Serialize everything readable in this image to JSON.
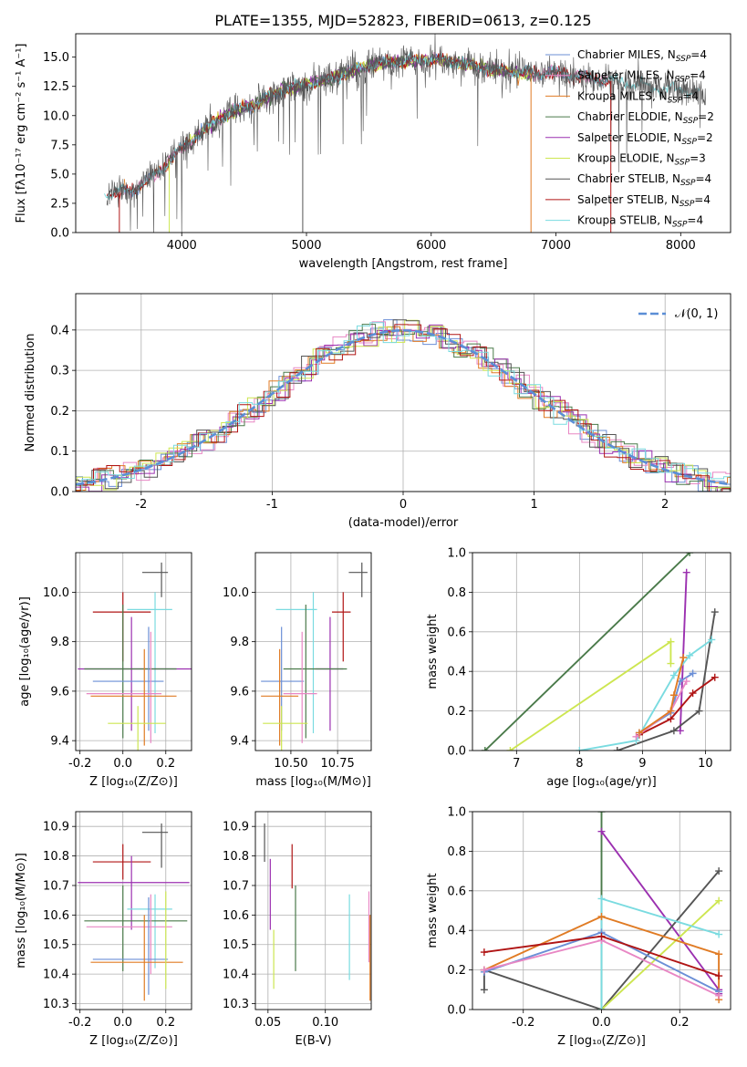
{
  "figure": {
    "title": "PLATE=1355, MJD=52823, FIBERID=0613, z=0.125"
  },
  "palette": {
    "Chabrier MILES": "#6b8fd6",
    "Salpeter MILES": "#e887c4",
    "Kroupa MILES": "#e07b24",
    "Chabrier ELODIE": "#4a7a4a",
    "Salpeter ELODIE": "#9b30b0",
    "Kroupa ELODIE": "#cde651",
    "Chabrier STELIB": "#555555",
    "Salpeter STELIB": "#b01515",
    "Kroupa STELIB": "#7adbe0"
  },
  "chart_data": [
    {
      "id": "spectrum",
      "type": "line",
      "xlabel": "wavelength [Angstrom, rest frame]",
      "ylabel": "Flux [fλ10⁻¹⁷ erg cm⁻² s⁻¹ A⁻¹]",
      "xlim": [
        3150,
        8400
      ],
      "ylim": [
        0,
        17
      ],
      "xticks": [
        4000,
        5000,
        6000,
        7000,
        8000
      ],
      "yticks": [
        0.0,
        2.5,
        5.0,
        7.5,
        10.0,
        12.5,
        15.0
      ],
      "legend": [
        "Chabrier MILES, N_SSP=4",
        "Salpeter MILES, N_SSP=4",
        "Kroupa MILES, N_SSP=4",
        "Chabrier ELODIE, N_SSP=2",
        "Salpeter ELODIE, N_SSP=2",
        "Kroupa ELODIE, N_SSP=3",
        "Chabrier STELIB, N_SSP=4",
        "Salpeter STELIB, N_SSP=4",
        "Kroupa STELIB, N_SSP=4"
      ],
      "legend_loc": "right",
      "continuum": {
        "x": [
          3400,
          3600,
          3800,
          4000,
          4200,
          4400,
          4600,
          4800,
          5000,
          5200,
          5400,
          5600,
          5800,
          6000,
          6200,
          6400,
          6600,
          6800,
          7000,
          7200,
          7400,
          7600,
          7800,
          8000,
          8200
        ],
        "y": [
          3.3,
          3.6,
          5.0,
          7.2,
          9.0,
          10.3,
          11.0,
          12.2,
          12.6,
          13.2,
          14.0,
          14.5,
          14.6,
          14.8,
          14.6,
          14.1,
          13.8,
          13.6,
          13.7,
          13.3,
          13.0,
          12.8,
          12.4,
          12.2,
          11.8
        ]
      }
    },
    {
      "id": "residuals",
      "type": "histogram",
      "xlabel": "(data-model)/error",
      "ylabel": "Normed distribution",
      "xlim": [
        -2.5,
        2.5
      ],
      "ylim": [
        0,
        0.49
      ],
      "xticks": [
        -2,
        -1,
        0,
        1,
        2
      ],
      "yticks": [
        0.0,
        0.1,
        0.2,
        0.3,
        0.4
      ],
      "legend": [
        "𝒩(0, 1)"
      ],
      "legend_loc": "top-right",
      "reference": "normal(0,1) pdf"
    },
    {
      "id": "age_vs_Z",
      "type": "scatter-errorbar",
      "xlabel": "Z [log₁₀(Z/Z⊙)]",
      "ylabel": "age  [log₁₀(age/yr)]",
      "xlim": [
        -0.22,
        0.32
      ],
      "ylim": [
        9.36,
        10.16
      ],
      "xticks": [
        -0.2,
        0.0,
        0.2
      ],
      "yticks": [
        9.4,
        9.6,
        9.8,
        10.0
      ],
      "points": [
        {
          "model": "Chabrier STELIB",
          "x": 0.18,
          "y": 10.08,
          "xerr": [
            0.09,
            0.03
          ],
          "yerr": [
            0.1,
            0.04
          ]
        },
        {
          "model": "Kroupa STELIB",
          "x": 0.15,
          "y": 9.93,
          "xerr": [
            0.13,
            0.08
          ],
          "yerr": [
            0.5,
            0.07
          ]
        },
        {
          "model": "Salpeter STELIB",
          "x": 0.0,
          "y": 9.92,
          "xerr": [
            0.14,
            0.13
          ],
          "yerr": [
            0.2,
            0.08
          ]
        },
        {
          "model": "Salpeter ELODIE",
          "x": 0.04,
          "y": 9.69,
          "xerr": [
            0.25,
            0.28
          ],
          "yerr": [
            0.25,
            0.21
          ]
        },
        {
          "model": "Chabrier ELODIE",
          "x": 0.0,
          "y": 9.69,
          "xerr": [
            0.18,
            0.25
          ],
          "yerr": [
            0.28,
            0.26
          ]
        },
        {
          "model": "Chabrier MILES",
          "x": 0.12,
          "y": 9.64,
          "xerr": [
            0.26,
            0.07
          ],
          "yerr": [
            0.2,
            0.22
          ]
        },
        {
          "model": "Salpeter MILES",
          "x": 0.13,
          "y": 9.59,
          "xerr": [
            0.3,
            0.05
          ],
          "yerr": [
            0.2,
            0.25
          ]
        },
        {
          "model": "Kroupa MILES",
          "x": 0.1,
          "y": 9.58,
          "xerr": [
            0.25,
            0.15
          ],
          "yerr": [
            0.2,
            0.19
          ]
        },
        {
          "model": "Kroupa ELODIE",
          "x": 0.07,
          "y": 9.47,
          "xerr": [
            0.14,
            0.13
          ],
          "yerr": [
            0.33,
            0.07
          ]
        }
      ]
    },
    {
      "id": "age_vs_mass",
      "type": "scatter-errorbar",
      "xlabel": "mass [log₁₀(M/M⊙)]",
      "ylabel": "",
      "xlim": [
        10.31,
        10.93
      ],
      "ylim": [
        9.36,
        10.16
      ],
      "xticks": [
        10.5,
        10.75
      ],
      "yticks": [
        9.4,
        9.6,
        9.8,
        10.0
      ],
      "points": [
        {
          "model": "Chabrier STELIB",
          "x": 10.88,
          "y": 10.08,
          "xerr": [
            0.07,
            0.03
          ],
          "yerr": [
            0.1,
            0.04
          ]
        },
        {
          "model": "Kroupa STELIB",
          "x": 10.62,
          "y": 9.93,
          "xerr": [
            0.2,
            0.02
          ],
          "yerr": [
            0.5,
            0.07
          ]
        },
        {
          "model": "Salpeter STELIB",
          "x": 10.78,
          "y": 9.92,
          "xerr": [
            0.06,
            0.04
          ],
          "yerr": [
            0.2,
            0.08
          ]
        },
        {
          "model": "Salpeter ELODIE",
          "x": 10.71,
          "y": 9.69,
          "xerr": [
            0.08,
            0.07
          ],
          "yerr": [
            0.25,
            0.21
          ]
        },
        {
          "model": "Chabrier ELODIE",
          "x": 10.58,
          "y": 9.69,
          "xerr": [
            0.12,
            0.22
          ],
          "yerr": [
            0.28,
            0.26
          ]
        },
        {
          "model": "Chabrier MILES",
          "x": 10.45,
          "y": 9.64,
          "xerr": [
            0.11,
            0.12
          ],
          "yerr": [
            0.2,
            0.22
          ]
        },
        {
          "model": "Salpeter MILES",
          "x": 10.56,
          "y": 9.59,
          "xerr": [
            0.1,
            0.08
          ],
          "yerr": [
            0.2,
            0.25
          ]
        },
        {
          "model": "Kroupa MILES",
          "x": 10.44,
          "y": 9.58,
          "xerr": [
            0.1,
            0.1
          ],
          "yerr": [
            0.2,
            0.19
          ]
        },
        {
          "model": "Kroupa ELODIE",
          "x": 10.45,
          "y": 9.47,
          "xerr": [
            0.1,
            0.14
          ],
          "yerr": [
            0.33,
            0.07
          ]
        }
      ]
    },
    {
      "id": "weight_vs_age",
      "type": "line",
      "xlabel": "age  [log₁₀(age/yr)]",
      "ylabel": "mass weight",
      "xlim": [
        6.3,
        10.4
      ],
      "ylim": [
        0,
        1.0
      ],
      "xticks": [
        7,
        8,
        9,
        10
      ],
      "yticks": [
        0.0,
        0.2,
        0.4,
        0.6,
        0.8,
        1.0
      ],
      "series": [
        {
          "model": "Chabrier ELODIE",
          "x": [
            6.5,
            9.75
          ],
          "y": [
            0.0,
            1.0
          ]
        },
        {
          "model": "Kroupa ELODIE",
          "x": [
            6.9,
            9.45,
            9.45
          ],
          "y": [
            0.0,
            0.55,
            0.44
          ]
        },
        {
          "model": "Salpeter ELODIE",
          "x": [
            9.6,
            9.7
          ],
          "y": [
            0.1,
            0.9
          ]
        },
        {
          "model": "Chabrier STELIB",
          "x": [
            8.6,
            9.5,
            9.9,
            10.15
          ],
          "y": [
            0.0,
            0.1,
            0.2,
            0.7
          ]
        },
        {
          "model": "Salpeter STELIB",
          "x": [
            8.95,
            9.45,
            9.8,
            10.15
          ],
          "y": [
            0.08,
            0.16,
            0.29,
            0.37
          ]
        },
        {
          "model": "Kroupa STELIB",
          "x": [
            8.0,
            8.9,
            9.5,
            9.75,
            10.1
          ],
          "y": [
            0.0,
            0.05,
            0.38,
            0.48,
            0.56
          ]
        },
        {
          "model": "Chabrier MILES",
          "x": [
            8.95,
            9.45,
            9.6,
            9.8
          ],
          "y": [
            0.09,
            0.19,
            0.35,
            0.39
          ]
        },
        {
          "model": "Salpeter MILES",
          "x": [
            8.9,
            9.45,
            9.7
          ],
          "y": [
            0.07,
            0.2,
            0.35
          ]
        },
        {
          "model": "Kroupa MILES",
          "x": [
            8.95,
            9.45,
            9.5,
            9.65
          ],
          "y": [
            0.09,
            0.2,
            0.28,
            0.47
          ]
        }
      ]
    },
    {
      "id": "mass_vs_Z",
      "type": "scatter-errorbar",
      "xlabel": "Z [log₁₀(Z/Z⊙)]",
      "ylabel": "mass [log₁₀(M/M⊙)]",
      "xlim": [
        -0.22,
        0.32
      ],
      "ylim": [
        10.28,
        10.95
      ],
      "xticks": [
        -0.2,
        0.0,
        0.2
      ],
      "yticks": [
        10.3,
        10.4,
        10.5,
        10.6,
        10.7,
        10.8,
        10.9
      ],
      "points": [
        {
          "model": "Chabrier STELIB",
          "x": 0.18,
          "y": 10.88,
          "xerr": [
            0.09,
            0.03
          ],
          "yerr": [
            0.12,
            0.03
          ]
        },
        {
          "model": "Salpeter STELIB",
          "x": 0.0,
          "y": 10.78,
          "xerr": [
            0.14,
            0.13
          ],
          "yerr": [
            0.06,
            0.06
          ]
        },
        {
          "model": "Salpeter ELODIE",
          "x": 0.04,
          "y": 10.71,
          "xerr": [
            0.25,
            0.27
          ],
          "yerr": [
            0.16,
            0.09
          ]
        },
        {
          "model": "Kroupa STELIB",
          "x": 0.15,
          "y": 10.62,
          "xerr": [
            0.13,
            0.08
          ],
          "yerr": [
            0.2,
            0.05
          ]
        },
        {
          "model": "Chabrier ELODIE",
          "x": 0.0,
          "y": 10.58,
          "xerr": [
            0.18,
            0.3
          ],
          "yerr": [
            0.17,
            0.12
          ]
        },
        {
          "model": "Salpeter MILES",
          "x": 0.13,
          "y": 10.56,
          "xerr": [
            0.3,
            0.1
          ],
          "yerr": [
            0.16,
            0.11
          ]
        },
        {
          "model": "Chabrier MILES",
          "x": 0.12,
          "y": 10.45,
          "xerr": [
            0.26,
            0.09
          ],
          "yerr": [
            0.12,
            0.21
          ]
        },
        {
          "model": "Kroupa MILES",
          "x": 0.1,
          "y": 10.44,
          "xerr": [
            0.25,
            0.18
          ],
          "yerr": [
            0.13,
            0.16
          ]
        },
        {
          "model": "Kroupa ELODIE",
          "x": 0.2,
          "y": 10.45,
          "xerr": [
            0.0,
            0.0
          ],
          "yerr": [
            0.1,
            0.23
          ]
        }
      ]
    },
    {
      "id": "mass_vs_ebv",
      "type": "scatter-errorbar",
      "xlabel": "E(B-V)",
      "ylabel": "",
      "xlim": [
        0.039,
        0.14
      ],
      "ylim": [
        10.28,
        10.95
      ],
      "xticks": [
        0.05,
        0.1
      ],
      "yticks": [
        10.3,
        10.4,
        10.5,
        10.6,
        10.7,
        10.8,
        10.9
      ],
      "points": [
        {
          "model": "Chabrier STELIB",
          "x": 0.047,
          "y": 10.86,
          "yerr": [
            0.08,
            0.05
          ]
        },
        {
          "model": "Salpeter STELIB",
          "x": 0.071,
          "y": 10.78,
          "yerr": [
            0.09,
            0.06
          ]
        },
        {
          "model": "Salpeter ELODIE",
          "x": 0.052,
          "y": 10.71,
          "yerr": [
            0.16,
            0.08
          ]
        },
        {
          "model": "Chabrier ELODIE",
          "x": 0.074,
          "y": 10.58,
          "yerr": [
            0.17,
            0.12
          ]
        },
        {
          "model": "Kroupa ELODIE",
          "x": 0.055,
          "y": 10.5,
          "yerr": [
            0.15,
            0.05
          ]
        },
        {
          "model": "Kroupa STELIB",
          "x": 0.121,
          "y": 10.52,
          "yerr": [
            0.14,
            0.15
          ]
        },
        {
          "model": "Salpeter MILES",
          "x": 0.138,
          "y": 10.56,
          "yerr": [
            0.12,
            0.12
          ]
        },
        {
          "model": "Kroupa MILES",
          "x": 0.139,
          "y": 10.45,
          "yerr": [
            0.14,
            0.15
          ]
        }
      ]
    },
    {
      "id": "weight_vs_Z",
      "type": "line",
      "xlabel": "Z [log₁₀(Z/Z⊙)]",
      "ylabel": "mass weight",
      "xlim": [
        -0.33,
        0.33
      ],
      "ylim": [
        0,
        1.0
      ],
      "xticks": [
        -0.2,
        0.0,
        0.2
      ],
      "yticks": [
        0.0,
        0.2,
        0.4,
        0.6,
        0.8,
        1.0
      ],
      "series": [
        {
          "model": "Chabrier ELODIE",
          "x": [
            0.0,
            0.0
          ],
          "y": [
            0.0,
            1.0
          ]
        },
        {
          "model": "Salpeter ELODIE",
          "x": [
            0.0,
            0.3,
            0.3
          ],
          "y": [
            0.9,
            0.1,
            0.08
          ]
        },
        {
          "model": "Chabrier STELIB",
          "x": [
            -0.3,
            -0.3,
            0.0,
            0.3
          ],
          "y": [
            0.1,
            0.2,
            0.0,
            0.7
          ]
        },
        {
          "model": "Kroupa ELODIE",
          "x": [
            0.0,
            0.3
          ],
          "y": [
            0.0,
            0.55
          ]
        },
        {
          "model": "Kroupa STELIB",
          "x": [
            0.0,
            0.0,
            0.3
          ],
          "y": [
            0.0,
            0.56,
            0.38
          ]
        },
        {
          "model": "Kroupa MILES",
          "x": [
            -0.3,
            0.0,
            0.3,
            0.3
          ],
          "y": [
            0.2,
            0.47,
            0.28,
            0.05
          ]
        },
        {
          "model": "Chabrier MILES",
          "x": [
            -0.3,
            0.0,
            0.3
          ],
          "y": [
            0.19,
            0.39,
            0.09
          ]
        },
        {
          "model": "Salpeter MILES",
          "x": [
            -0.3,
            0.0,
            0.3
          ],
          "y": [
            0.2,
            0.35,
            0.07
          ]
        },
        {
          "model": "Salpeter STELIB",
          "x": [
            -0.3,
            0.0,
            0.3
          ],
          "y": [
            0.29,
            0.37,
            0.17
          ]
        }
      ]
    }
  ]
}
